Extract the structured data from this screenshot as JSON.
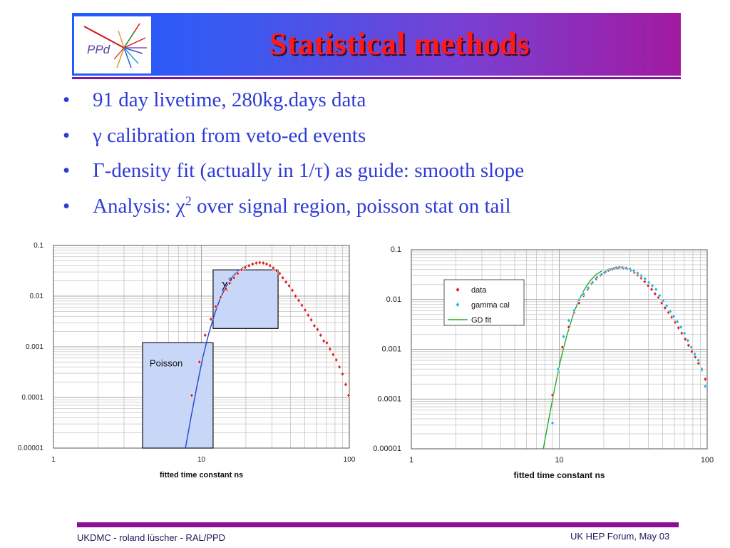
{
  "slide": {
    "title": "Statistical methods",
    "logo_text": "PPd",
    "bullets": [
      {
        "text": "91 day livetime, 280kg.days data"
      },
      {
        "text": "γ calibration from veto-ed events"
      },
      {
        "text": "Γ-density fit (actually in 1/τ) as guide: smooth slope"
      },
      {
        "pre": "Analysis: χ",
        "sup": "2",
        "post": " over signal region, poisson stat on tail"
      }
    ],
    "bullet_glyph": "•"
  },
  "footer": {
    "left": "UKDMC - roland lüscher - RAL/PPD",
    "right": "UK HEP Forum, May 03"
  },
  "colors": {
    "title": "#ff1a1a",
    "bullet_text": "#2e3bd6",
    "data_marker": "#e02020",
    "gamma_marker": "#20b8e0",
    "fit_left": "#2244cc",
    "fit_right": "#22aa22",
    "region_fill": "#c8d6f8"
  },
  "chart_data": [
    {
      "type": "scatter",
      "xlabel": "fitted time constant ns",
      "ylabel": "",
      "xscale": "log",
      "yscale": "log",
      "xlim": [
        1,
        100
      ],
      "ylim": [
        1e-05,
        0.1
      ],
      "x_ticks": [
        "1",
        "10",
        "100"
      ],
      "y_ticks": [
        "0.00001",
        "0.0001",
        "0.001",
        "0.01",
        "0.1"
      ],
      "grid": true,
      "series": [
        {
          "x": [
            8.6,
            9.7,
            10.6,
            11.6,
            12.5,
            13.5,
            14.6,
            15.5,
            16.6,
            17.6,
            18.7,
            19.8,
            21.0,
            22.2,
            23.5,
            24.8,
            26.2,
            27.6,
            29.1,
            30.6,
            32.2,
            33.8,
            35.5,
            37.3,
            39.2,
            41.2,
            43.3,
            45.5,
            47.8,
            50.2,
            52.7,
            55.3,
            58.0,
            60.9,
            64.0,
            67.2,
            70.5,
            74.0,
            77.7,
            81.6,
            85.7,
            90.0,
            94.5,
            99.0
          ],
          "y": [
            0.00011,
            0.0005,
            0.0017,
            0.0035,
            0.0062,
            0.0095,
            0.014,
            0.018,
            0.023,
            0.028,
            0.033,
            0.037,
            0.04,
            0.043,
            0.045,
            0.046,
            0.045,
            0.043,
            0.04,
            0.036,
            0.032,
            0.028,
            0.023,
            0.019,
            0.016,
            0.013,
            0.01,
            0.0082,
            0.0066,
            0.0053,
            0.0042,
            0.0034,
            0.0026,
            0.0022,
            0.0017,
            0.0013,
            0.0012,
            0.0009,
            0.0007,
            0.00055,
            0.0004,
            0.00029,
            0.00018,
            0.00011
          ]
        }
      ],
      "fit": {
        "x": [
          7.8,
          8.5,
          9.3,
          10.2,
          11.2,
          12.3,
          13.5,
          14.8,
          16.2,
          17.8,
          19.5,
          21.3
        ],
        "y": [
          1e-05,
          4e-05,
          0.00016,
          0.0006,
          0.0018,
          0.0045,
          0.0095,
          0.016,
          0.024,
          0.032,
          0.038,
          0.042
        ]
      },
      "annotations": [
        {
          "name": "chi2-region",
          "label": "χ",
          "sup": "2",
          "x_range": [
            12,
            33
          ],
          "y_range": [
            0.0023,
            0.033
          ]
        },
        {
          "name": "poisson-region",
          "label": "Poisson",
          "x_range": [
            4,
            12
          ],
          "y_range": [
            1e-05,
            0.0012
          ]
        }
      ]
    },
    {
      "type": "scatter",
      "xlabel": "fitted time constant ns",
      "ylabel": "",
      "xscale": "log",
      "yscale": "log",
      "xlim": [
        1,
        100
      ],
      "ylim": [
        1e-05,
        0.1
      ],
      "x_ticks": [
        "1",
        "10",
        "100"
      ],
      "y_ticks": [
        "0.00001",
        "0.0001",
        "0.001",
        "0.01",
        "0.1"
      ],
      "grid": true,
      "legend": "top-left",
      "series": [
        {
          "name": "data",
          "marker": "diamond",
          "color": "#e02020",
          "x": [
            9.0,
            10.5,
            11.6,
            12.6,
            13.6,
            14.6,
            15.6,
            16.6,
            17.8,
            19.0,
            20.2,
            21.5,
            22.8,
            24.2,
            25.6,
            27.1,
            28.7,
            30.4,
            32.1,
            33.9,
            35.8,
            37.8,
            39.9,
            42.1,
            44.4,
            46.8,
            49.3,
            51.9,
            54.7,
            57.6,
            60.7,
            64.0,
            67.4,
            71.0,
            74.8,
            78.8,
            83.0,
            87.4,
            92.0,
            97.0
          ],
          "y": [
            0.00012,
            0.0011,
            0.0028,
            0.0055,
            0.0085,
            0.012,
            0.016,
            0.021,
            0.026,
            0.031,
            0.035,
            0.039,
            0.041,
            0.043,
            0.044,
            0.043,
            0.042,
            0.039,
            0.035,
            0.031,
            0.027,
            0.023,
            0.019,
            0.016,
            0.013,
            0.011,
            0.0085,
            0.0068,
            0.0055,
            0.0044,
            0.0035,
            0.0027,
            0.0021,
            0.0016,
            0.0012,
            0.0009,
            0.0007,
            0.00052,
            0.00038,
            0.00025
          ]
        },
        {
          "name": "gamma cal",
          "marker": "diamond",
          "color": "#20b8e0",
          "x": [
            9.0,
            9.8,
            10.7,
            11.6,
            12.6,
            13.6,
            14.6,
            15.7,
            16.8,
            18.0,
            19.3,
            20.6,
            22.0,
            23.5,
            25.0,
            26.6,
            28.3,
            30.1,
            31.9,
            33.9,
            35.9,
            38.0,
            40.3,
            42.6,
            45.1,
            47.7,
            50.4,
            53.3,
            56.3,
            59.5,
            62.8,
            66.4,
            70.1,
            74.0,
            78.2,
            82.5,
            87.1,
            91.9,
            97.0
          ],
          "y": [
            3.3e-05,
            0.0004,
            0.0018,
            0.0038,
            0.006,
            0.0098,
            0.013,
            0.017,
            0.022,
            0.028,
            0.032,
            0.036,
            0.04,
            0.042,
            0.043,
            0.044,
            0.043,
            0.041,
            0.038,
            0.034,
            0.03,
            0.026,
            0.022,
            0.019,
            0.016,
            0.012,
            0.0095,
            0.0075,
            0.0058,
            0.0046,
            0.0036,
            0.0028,
            0.0021,
            0.0015,
            0.0011,
            0.0008,
            0.0006,
            0.0004,
            0.00018
          ]
        }
      ],
      "fit": {
        "name": "GD fit",
        "color": "#22aa22",
        "x": [
          7.8,
          8.5,
          9.3,
          10.2,
          11.2,
          12.3,
          13.5,
          14.8,
          16.2,
          17.8,
          19.5
        ],
        "y": [
          1e-05,
          4e-05,
          0.00016,
          0.0006,
          0.0018,
          0.0045,
          0.0095,
          0.016,
          0.024,
          0.032,
          0.038
        ]
      }
    }
  ]
}
